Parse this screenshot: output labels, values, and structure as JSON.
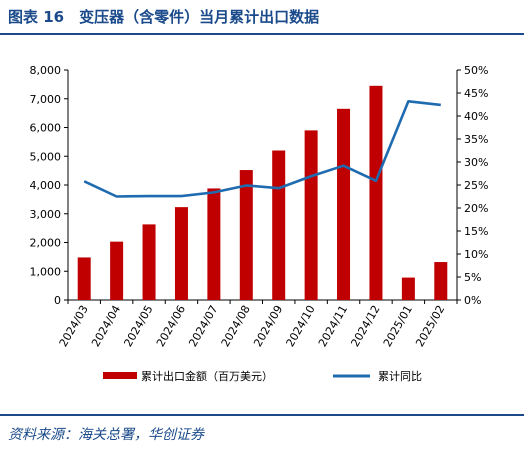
{
  "header": {
    "title": "图表 16　变压器（含零件）当月累计出口数据"
  },
  "footer": {
    "source": "资料来源：海关总署，华创证券"
  },
  "colors": {
    "bar": "#c00000",
    "line": "#1f6bb0",
    "accent": "#1a4a8a"
  },
  "chart_data": {
    "type": "bar",
    "categories": [
      "2024/03",
      "2024/04",
      "2024/05",
      "2024/06",
      "2024/07",
      "2024/08",
      "2024/09",
      "2024/10",
      "2024/11",
      "2024/12",
      "2025/01",
      "2025/02"
    ],
    "series": [
      {
        "name": "累计出口金额（百万美元）",
        "type": "bar",
        "axis": "left",
        "values": [
          1480,
          2030,
          2630,
          3230,
          3880,
          4520,
          5200,
          5900,
          6650,
          7450,
          780,
          1320
        ]
      },
      {
        "name": "累计同比",
        "type": "line",
        "axis": "right",
        "values": [
          25.8,
          22.5,
          22.6,
          22.6,
          23.4,
          24.9,
          24.3,
          26.9,
          29.2,
          25.9,
          43.2,
          42.4
        ]
      }
    ],
    "y_left": {
      "ylim": [
        0,
        8000
      ],
      "ticks": [
        "0",
        "1,000",
        "2,000",
        "3,000",
        "4,000",
        "5,000",
        "6,000",
        "7,000",
        "8,000"
      ]
    },
    "y_right": {
      "ylim": [
        0,
        50
      ],
      "ticks": [
        "0%",
        "5%",
        "10%",
        "15%",
        "20%",
        "25%",
        "30%",
        "35%",
        "40%",
        "45%",
        "50%"
      ]
    },
    "grid": false,
    "legend": "bottom"
  }
}
